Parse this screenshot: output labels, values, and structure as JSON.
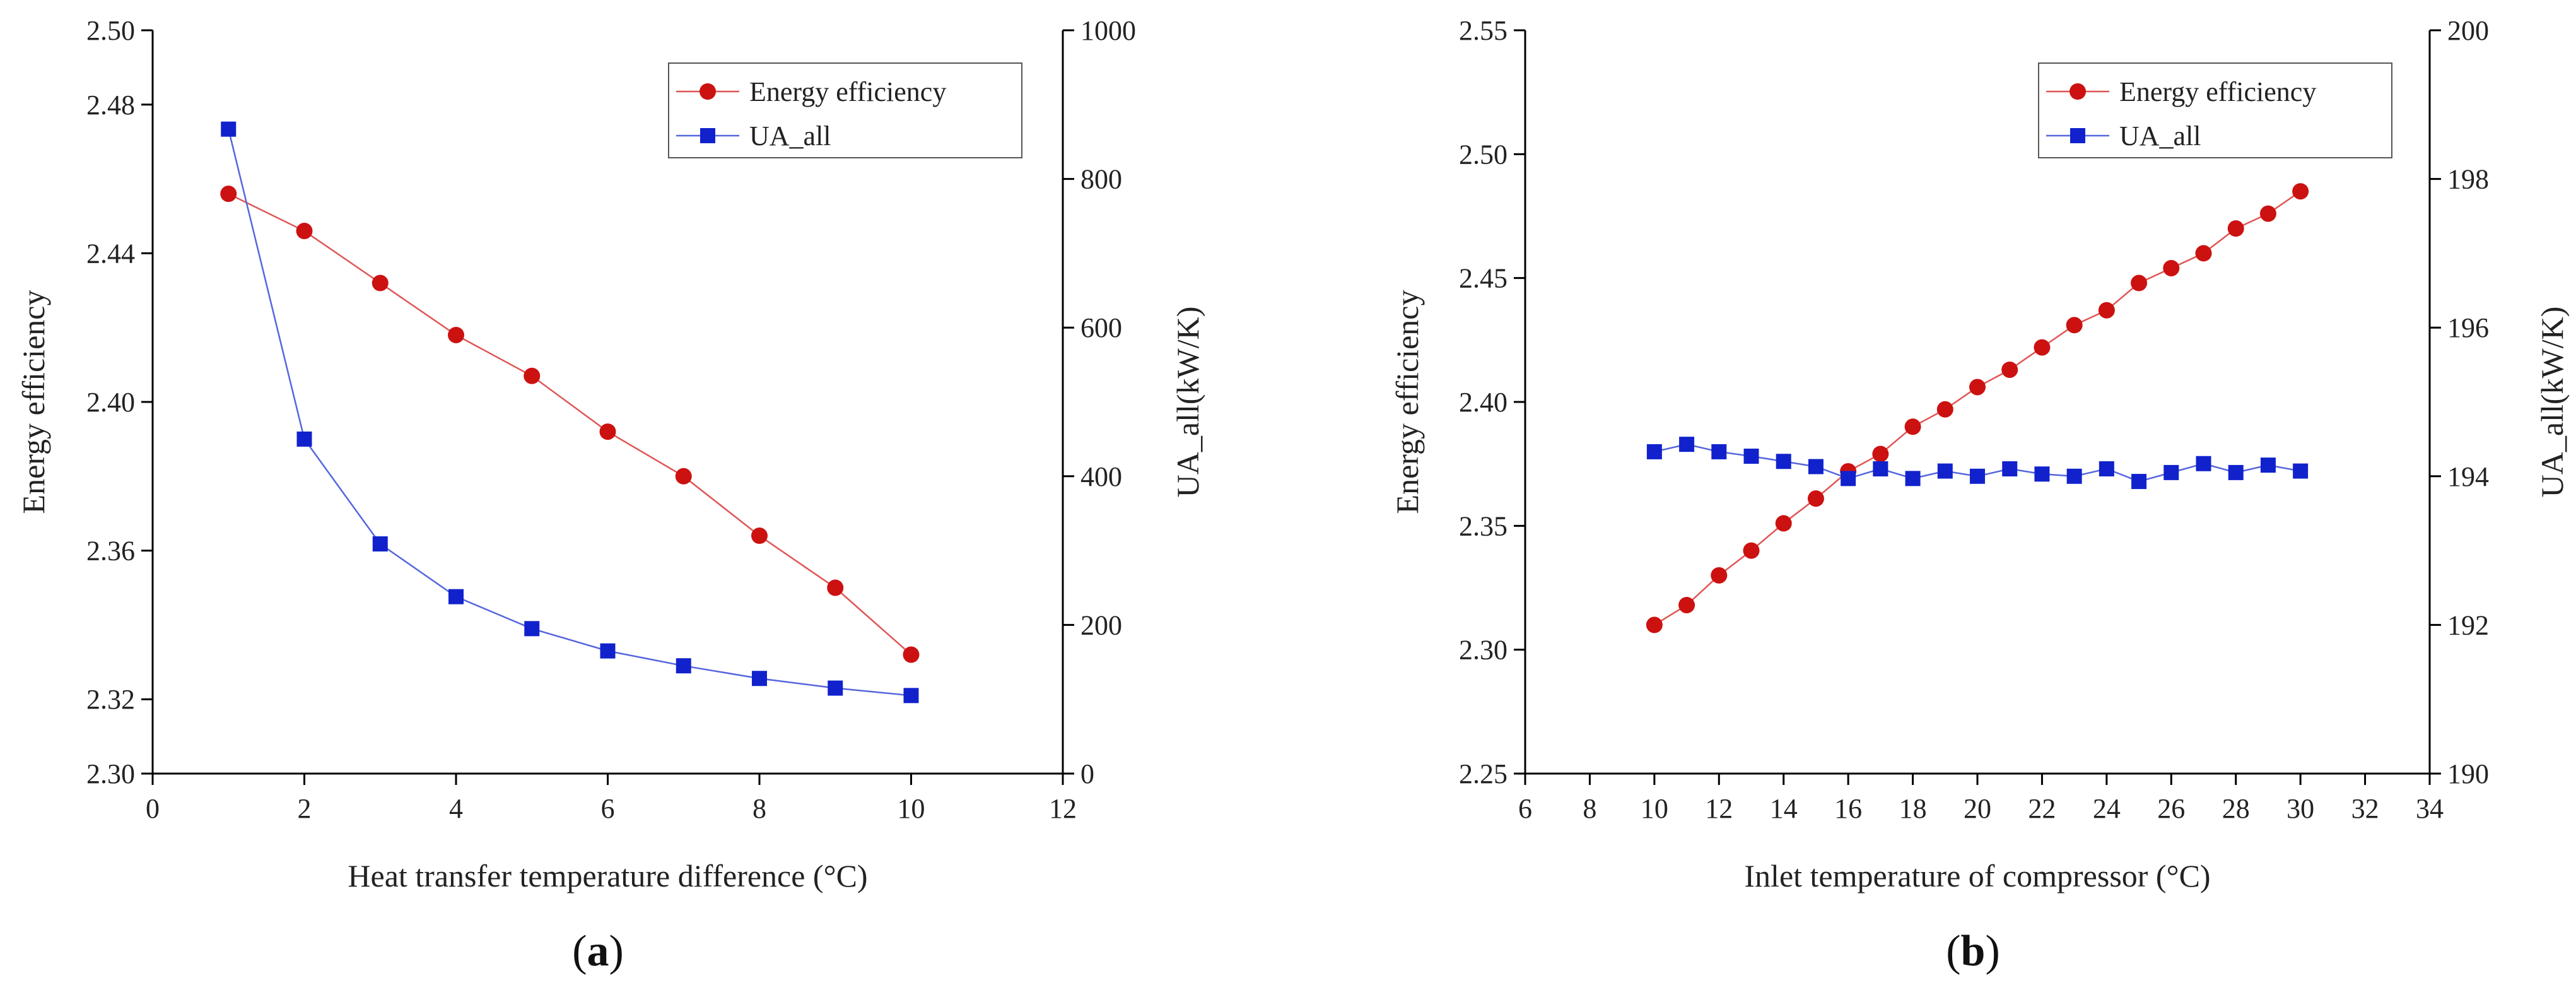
{
  "chart_data": [
    {
      "type": "line",
      "panel_label": "(a)",
      "panel_letter": "a",
      "xlabel": "Heat transfer temperature difference (°C)",
      "ylabel_left": "Energy efficiency",
      "ylabel_right": "UA_all(kW/K)",
      "xlim": [
        0,
        12
      ],
      "xticks": [
        0,
        2,
        4,
        6,
        8,
        10,
        12
      ],
      "ylim_left": [
        2.3,
        2.5
      ],
      "yticks_left": [
        "2.30",
        "2.32",
        "2.36",
        "2.40",
        "2.44",
        "2.48",
        "2.50"
      ],
      "ylim_right": [
        0,
        1000
      ],
      "yticks_right": [
        "0",
        "200",
        "400",
        "600",
        "800",
        "1000"
      ],
      "legend_position": "top-right",
      "series": [
        {
          "name": "Energy efficiency",
          "axis": "left",
          "marker": "circle",
          "color": "#cc1111",
          "line_color": "#e05555",
          "x": [
            1,
            2,
            3,
            4,
            5,
            6,
            7,
            8,
            9,
            10
          ],
          "y": [
            2.456,
            2.446,
            2.432,
            2.418,
            2.407,
            2.392,
            2.38,
            2.364,
            2.35,
            2.332
          ]
        },
        {
          "name": "UA_all",
          "axis": "right",
          "marker": "square",
          "color": "#1122cc",
          "line_color": "#5566dd",
          "x": [
            1,
            2,
            3,
            4,
            5,
            6,
            7,
            8,
            9,
            10
          ],
          "y": [
            867,
            450,
            309,
            238,
            195,
            165,
            145,
            128,
            115,
            105
          ]
        }
      ]
    },
    {
      "type": "line",
      "panel_label": "(b)",
      "panel_letter": "b",
      "xlabel": "Inlet temperature of compressor (°C)",
      "ylabel_left": "Energy efficiency",
      "ylabel_right": "UA_all(kW/K)",
      "xlim": [
        6,
        34
      ],
      "xticks": [
        6,
        8,
        10,
        12,
        14,
        16,
        18,
        20,
        22,
        24,
        26,
        28,
        30,
        32,
        34
      ],
      "ylim_left": [
        2.25,
        2.55
      ],
      "yticks_left": [
        "2.25",
        "2.30",
        "2.35",
        "2.40",
        "2.45",
        "2.50",
        "2.55"
      ],
      "ylim_right": [
        190,
        200
      ],
      "yticks_right": [
        "190",
        "192",
        "194",
        "196",
        "198",
        "200"
      ],
      "legend_position": "top-right",
      "series": [
        {
          "name": "Energy efficiency",
          "axis": "left",
          "marker": "circle",
          "color": "#cc1111",
          "line_color": "#e05555",
          "x": [
            10,
            11,
            12,
            13,
            14,
            15,
            16,
            17,
            18,
            19,
            20,
            21,
            22,
            23,
            24,
            25,
            26,
            27,
            28,
            29,
            30
          ],
          "y": [
            2.31,
            2.318,
            2.33,
            2.34,
            2.351,
            2.361,
            2.372,
            2.379,
            2.39,
            2.397,
            2.406,
            2.413,
            2.422,
            2.431,
            2.437,
            2.448,
            2.454,
            2.46,
            2.47,
            2.476,
            2.485
          ]
        },
        {
          "name": "UA_all",
          "axis": "right",
          "marker": "square",
          "color": "#1122cc",
          "line_color": "#5566dd",
          "x": [
            10,
            11,
            12,
            13,
            14,
            15,
            16,
            17,
            18,
            19,
            20,
            21,
            22,
            23,
            24,
            25,
            26,
            27,
            28,
            29,
            30
          ],
          "y": [
            194.33,
            194.43,
            194.33,
            194.27,
            194.2,
            194.13,
            193.97,
            194.1,
            193.97,
            194.07,
            194.0,
            194.1,
            194.03,
            194.0,
            194.1,
            193.93,
            194.05,
            194.17,
            194.05,
            194.15,
            194.07
          ]
        }
      ]
    }
  ]
}
